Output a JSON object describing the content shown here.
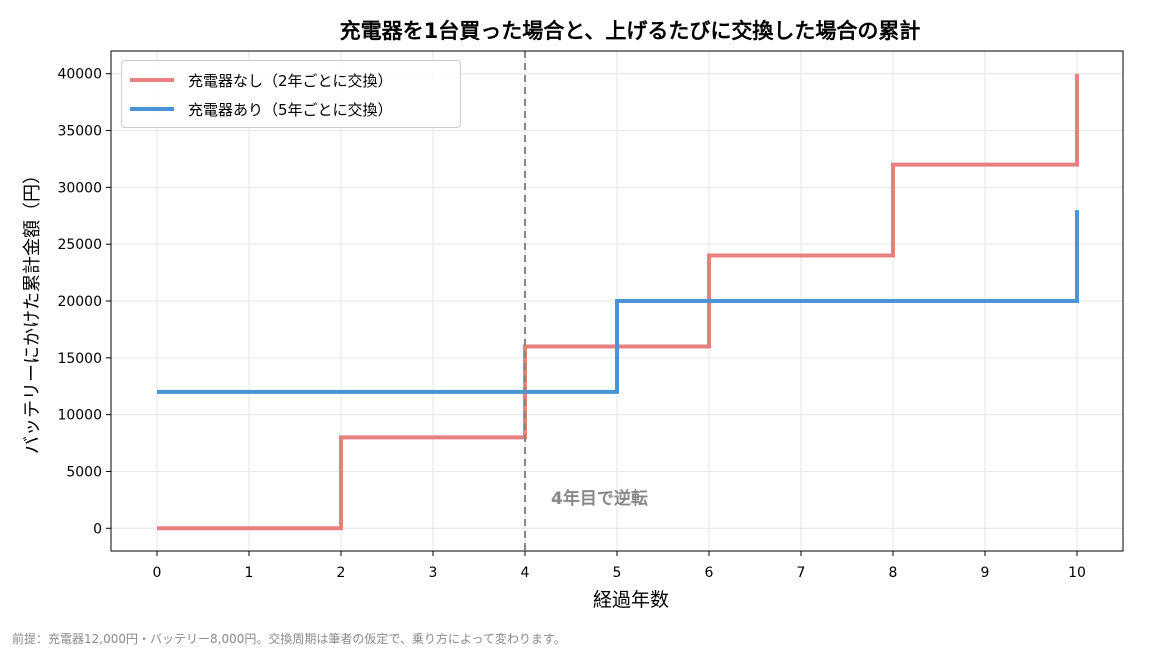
{
  "chart_data": {
    "type": "line",
    "step": true,
    "title": "充電器を1台買った場合と、上げるたびに交換した場合の累計",
    "xlabel": "経過年数",
    "ylabel": "バッテリーにかけた累計金額（円）",
    "xlim": [
      -0.5,
      10.5
    ],
    "ylim": [
      -2000,
      42000
    ],
    "xticks": [
      0,
      1,
      2,
      3,
      4,
      5,
      6,
      7,
      8,
      9,
      10
    ],
    "yticks": [
      0,
      5000,
      10000,
      15000,
      20000,
      25000,
      30000,
      35000,
      40000
    ],
    "grid": true,
    "legend_position": "top-left",
    "series": [
      {
        "name": "充電器なし（2年ごとに交換）",
        "color": "#e88080",
        "x": [
          0,
          2,
          2,
          4,
          4,
          6,
          6,
          8,
          8,
          10,
          10
        ],
        "y": [
          0,
          0,
          8000,
          8000,
          16000,
          16000,
          24000,
          24000,
          32000,
          32000,
          40000
        ]
      },
      {
        "name": "充電器あり（5年ごとに交換）",
        "color": "#4a94d6",
        "x": [
          0,
          5,
          5,
          10,
          10
        ],
        "y": [
          12000,
          12000,
          20000,
          20000,
          28000
        ]
      }
    ],
    "annotations": [
      {
        "type": "vline",
        "x": 4,
        "color": "#888888",
        "label": "4年目で逆転"
      }
    ]
  },
  "footnote": "前提：充電器12,000円・バッテリー8,000円。交換周期は筆者の仮定で、乗り方によって変わります。"
}
